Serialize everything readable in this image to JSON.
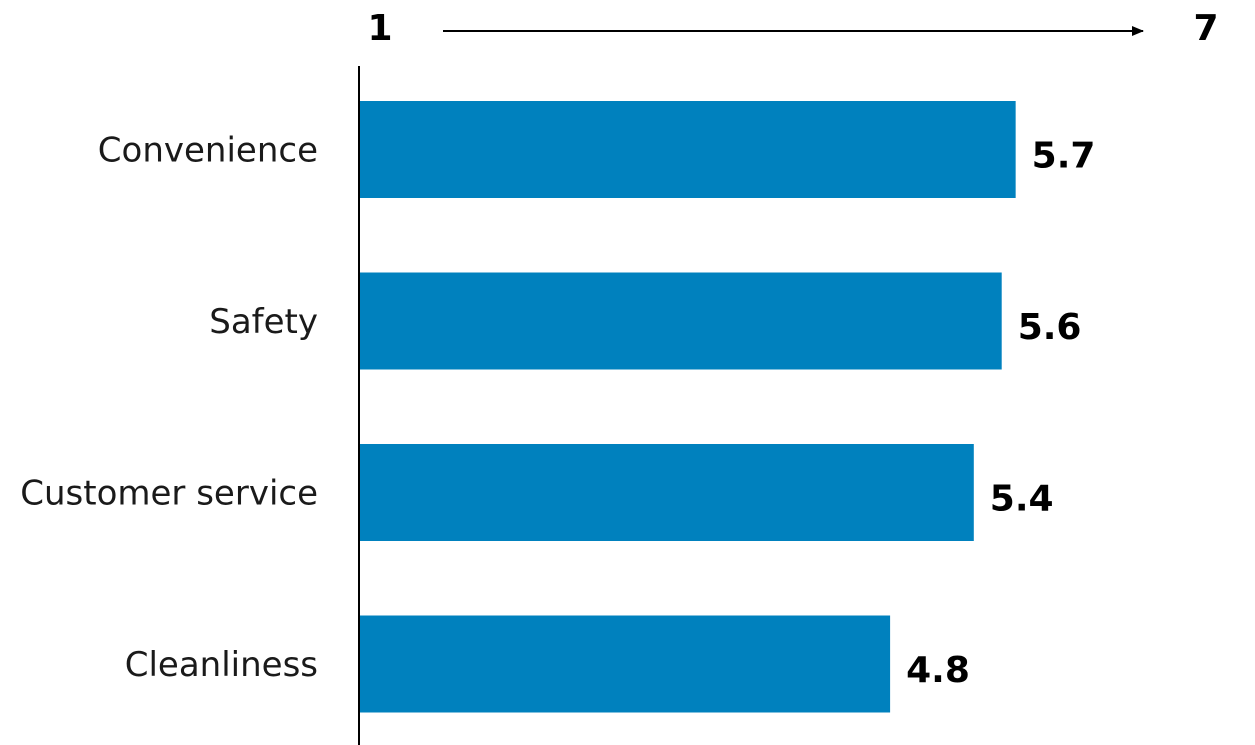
{
  "chart_data": {
    "type": "bar",
    "orientation": "horizontal",
    "categories": [
      "Convenience",
      "Safety",
      "Customer service",
      "Cleanliness"
    ],
    "values": [
      5.7,
      5.6,
      5.4,
      4.8
    ],
    "value_labels": [
      "5.7",
      "5.6",
      "5.4",
      "4.8"
    ],
    "scale": {
      "min_label": "1",
      "max_label": "7",
      "min": 1,
      "max": 7
    },
    "xlim": [
      1,
      7
    ],
    "bar_color": "#0081BE",
    "grid": false,
    "legend": "none"
  }
}
